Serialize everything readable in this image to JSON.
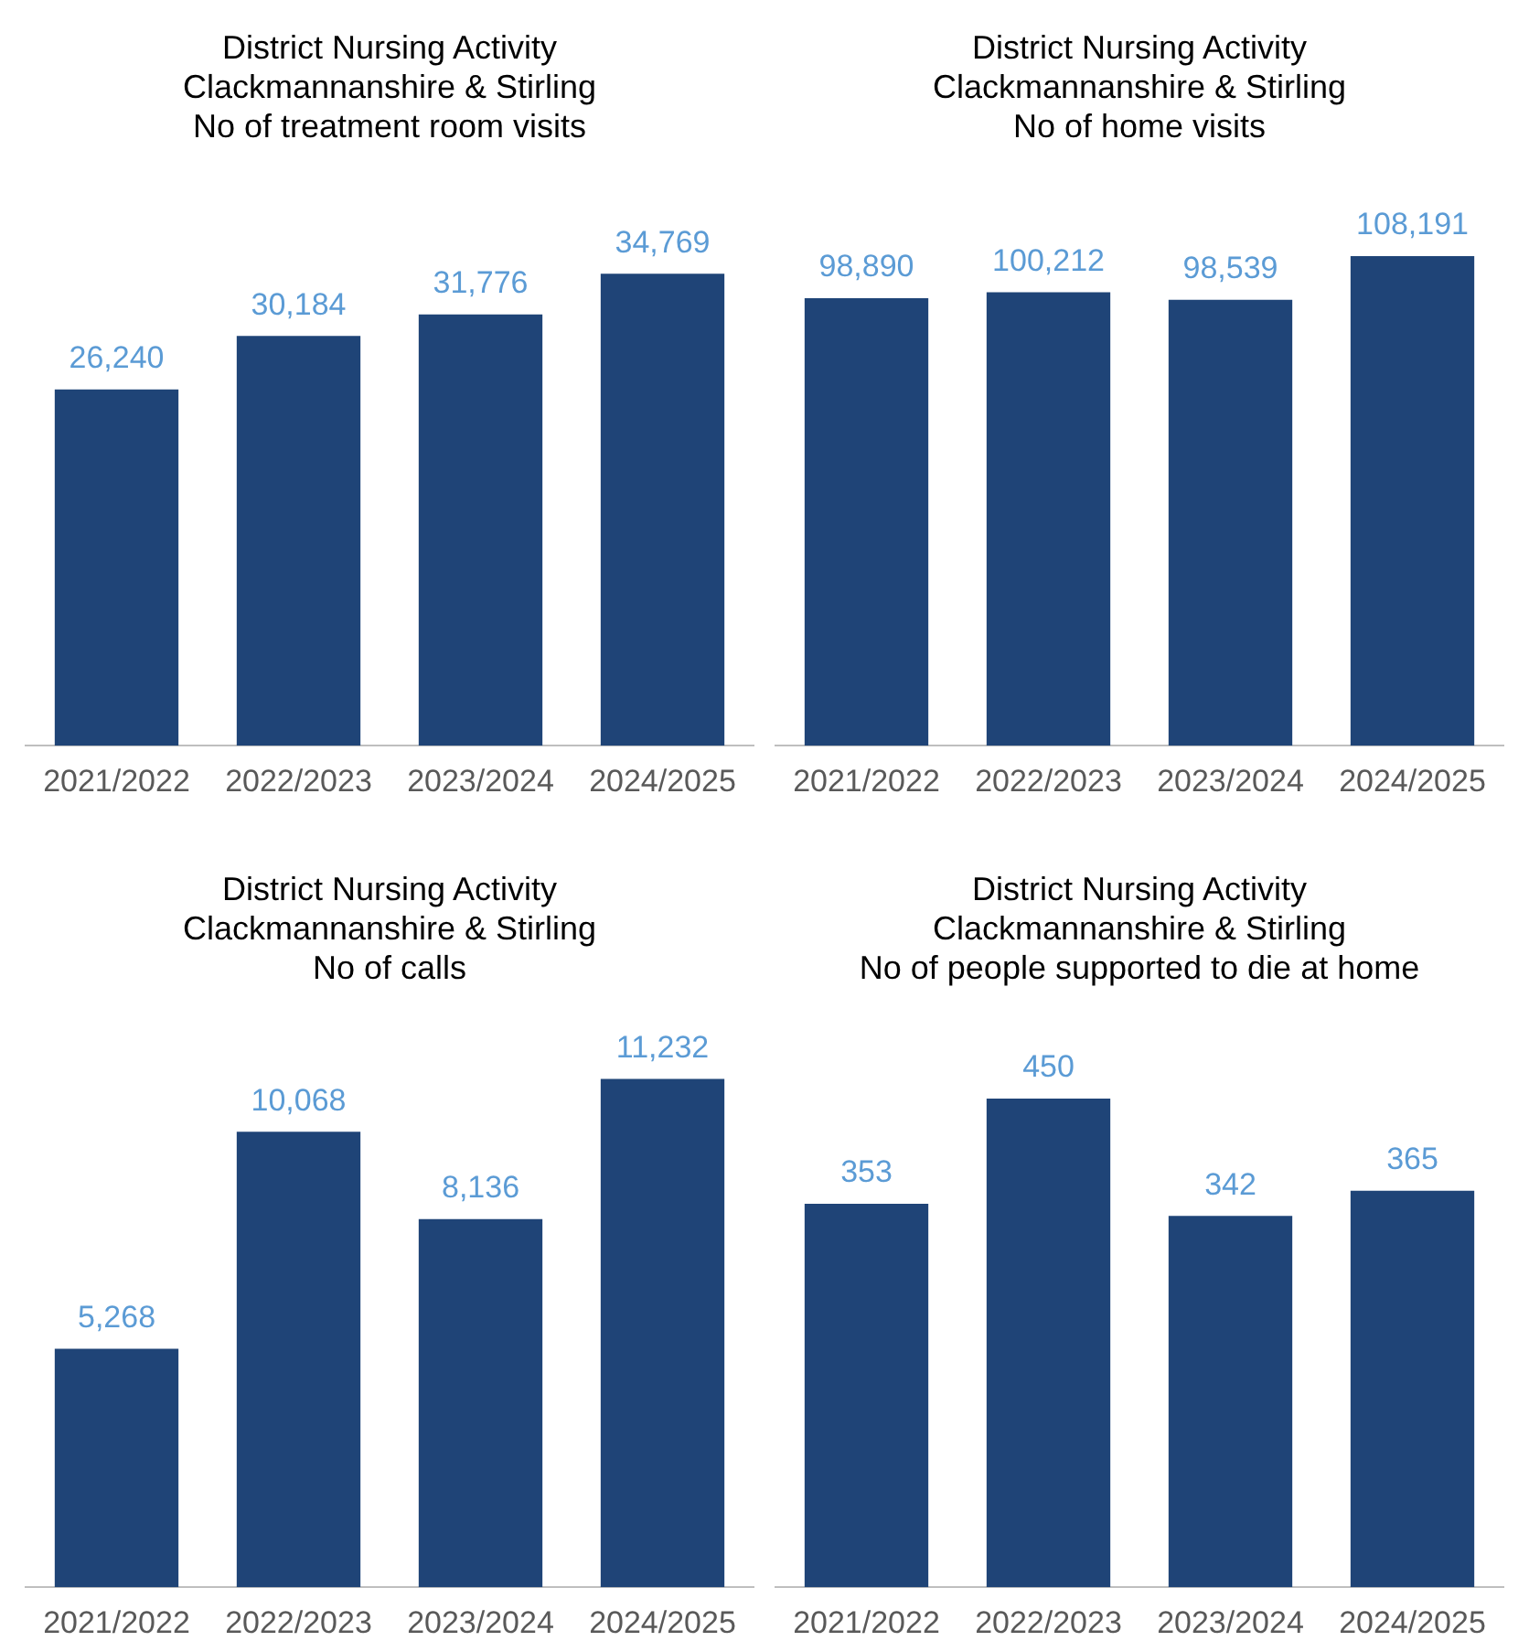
{
  "chart_data": [
    {
      "type": "bar",
      "title": "District Nursing Activity\nClackmannanshire & Stirling\nNo of treatment room visits",
      "categories": [
        "2021/2022",
        "2022/2023",
        "2023/2024",
        "2024/2025"
      ],
      "values": [
        26240,
        30184,
        31776,
        34769
      ],
      "value_labels": [
        "26,240",
        "30,184",
        "31,776",
        "34,769"
      ],
      "color": "#1f4477",
      "tick_labels": "x"
    },
    {
      "type": "bar",
      "title": "District Nursing Activity\nClackmannanshire & Stirling\nNo of home visits",
      "categories": [
        "2021/2022",
        "2022/2023",
        "2023/2024",
        "2024/2025"
      ],
      "values": [
        98890,
        100212,
        98539,
        108191
      ],
      "value_labels": [
        "98,890",
        "100,212",
        "98,539",
        "108,191"
      ],
      "color": "#1f4477",
      "tick_labels": "x"
    },
    {
      "type": "bar",
      "title": "District Nursing Activity\nClackmannanshire & Stirling\nNo of calls",
      "categories": [
        "2021/2022",
        "2022/2023",
        "2023/2024",
        "2024/2025"
      ],
      "values": [
        5268,
        10068,
        8136,
        11232
      ],
      "value_labels": [
        "5,268",
        "10,068",
        "8,136",
        "11,232"
      ],
      "color": "#1f4477",
      "tick_labels": "x"
    },
    {
      "type": "bar",
      "title": "District Nursing Activity\nClackmannanshire & Stirling\nNo of people supported to die at home",
      "categories": [
        "2021/2022",
        "2022/2023",
        "2023/2024",
        "2024/2025"
      ],
      "values": [
        353,
        450,
        342,
        365
      ],
      "data_labels": true,
      "color": "#1f4477",
      "tick_labels": "x"
    }
  ]
}
